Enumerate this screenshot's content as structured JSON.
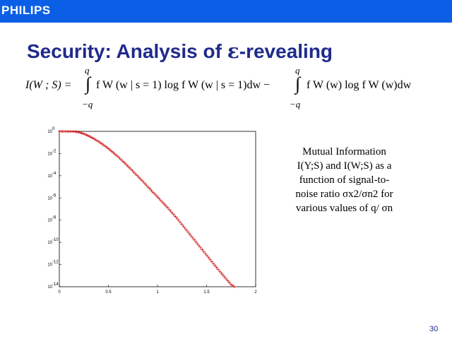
{
  "header": {
    "logo_text": "PHILIPS",
    "bar_color": "#0a5fe6"
  },
  "slide": {
    "title_prefix": "Security: Analysis of ",
    "title_symbol": "ε",
    "title_suffix": "-revealing",
    "title_color": "#1f2a8c",
    "page_number": "30"
  },
  "formula": {
    "lhs": "I(W ; S) =",
    "upper_limit_1": "q",
    "lower_limit_1": "−q",
    "term_1": "f W (w | s = 1) log f W (w | s = 1)dw −",
    "upper_limit_2": "q",
    "lower_limit_2": "−q",
    "term_2": "f W (w) log f W (w)dw"
  },
  "caption": {
    "line1": "Mutual Information",
    "line2": "I(Y;S) and I(W;S) as a",
    "line3": "function of signal-to-",
    "line4": "noise ratio σx2/σn2 for",
    "line5": "various values of q/ σn"
  },
  "chart_data": {
    "type": "scatter",
    "marker": "+",
    "color": "#cc0000",
    "xlim": [
      0,
      2
    ],
    "ylim": [
      -14,
      0
    ],
    "y_scale": "log10",
    "x_tick_labels": [
      "0",
      "0.5",
      "1",
      "1.5",
      "2"
    ],
    "y_tick_labels": [
      "10^0",
      "10^-2",
      "10^-4",
      "10^-6",
      "10^-8",
      "10^-10",
      "10^-12",
      "10^-14"
    ],
    "points": [
      [
        0.0,
        0.0
      ],
      [
        0.15,
        -0.02
      ],
      [
        0.2,
        -0.08
      ],
      [
        0.25,
        -0.22
      ],
      [
        0.3,
        -0.42
      ],
      [
        0.35,
        -0.65
      ],
      [
        0.4,
        -0.92
      ],
      [
        0.45,
        -1.22
      ],
      [
        0.5,
        -1.55
      ],
      [
        0.55,
        -1.92
      ],
      [
        0.6,
        -2.3
      ],
      [
        0.65,
        -2.72
      ],
      [
        0.7,
        -3.15
      ],
      [
        0.75,
        -3.6
      ],
      [
        0.8,
        -4.05
      ],
      [
        0.85,
        -4.5
      ],
      [
        0.9,
        -4.98
      ],
      [
        0.95,
        -5.45
      ],
      [
        1.0,
        -5.9
      ],
      [
        1.05,
        -6.38
      ],
      [
        1.1,
        -6.85
      ],
      [
        1.15,
        -7.35
      ],
      [
        1.2,
        -7.85
      ],
      [
        1.25,
        -8.4
      ],
      [
        1.3,
        -8.95
      ],
      [
        1.35,
        -9.5
      ],
      [
        1.4,
        -10.05
      ],
      [
        1.45,
        -10.6
      ],
      [
        1.5,
        -11.15
      ],
      [
        1.55,
        -11.7
      ],
      [
        1.6,
        -12.25
      ],
      [
        1.65,
        -12.78
      ],
      [
        1.7,
        -13.3
      ],
      [
        1.75,
        -13.8
      ],
      [
        1.78,
        -14.0
      ]
    ]
  }
}
